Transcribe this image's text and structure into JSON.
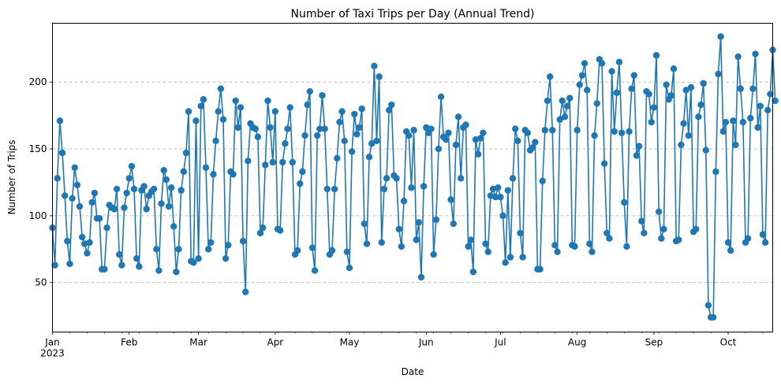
{
  "chart_data": {
    "type": "line",
    "title": "Number of Taxi Trips per Day (Annual Trend)",
    "xlabel": "Date",
    "ylabel": "Number of Trips",
    "x_start": "2023-01-01",
    "x_end": "2023-10-19",
    "xlim": [
      "2023-01-01",
      "2023-10-19"
    ],
    "ylim": [
      13,
      244
    ],
    "x_ticks": [
      {
        "date": "2023-01-01",
        "label": "Jan",
        "sublabel": "2023"
      },
      {
        "date": "2023-02-01",
        "label": "Feb",
        "sublabel": ""
      },
      {
        "date": "2023-03-01",
        "label": "Mar",
        "sublabel": ""
      },
      {
        "date": "2023-04-01",
        "label": "Apr",
        "sublabel": ""
      },
      {
        "date": "2023-05-01",
        "label": "May",
        "sublabel": ""
      },
      {
        "date": "2023-06-01",
        "label": "Jun",
        "sublabel": ""
      },
      {
        "date": "2023-07-01",
        "label": "Jul",
        "sublabel": ""
      },
      {
        "date": "2023-08-01",
        "label": "Aug",
        "sublabel": ""
      },
      {
        "date": "2023-09-01",
        "label": "Sep",
        "sublabel": ""
      },
      {
        "date": "2023-10-01",
        "label": "Oct",
        "sublabel": ""
      }
    ],
    "y_ticks": [
      50,
      100,
      150,
      200
    ],
    "grid": "y-dashed",
    "marker": "circle",
    "color": "#1f77b4",
    "series": [
      {
        "values": [
          91,
          63,
          128,
          171,
          147,
          115,
          81,
          64,
          113,
          136,
          123,
          107,
          84,
          79,
          72,
          80,
          110,
          117,
          98,
          98,
          60,
          60,
          91,
          108,
          106,
          105,
          120,
          71,
          63,
          106,
          117,
          128,
          137,
          120,
          68,
          62,
          119,
          122,
          105,
          115,
          118,
          120,
          75,
          59,
          109,
          134,
          127,
          107,
          121,
          92,
          58,
          75,
          119,
          133,
          147,
          178,
          66,
          65,
          171,
          68,
          182,
          187,
          136,
          75,
          80,
          131,
          156,
          178,
          195,
          172,
          68,
          78,
          133,
          131,
          186,
          166,
          181,
          81,
          43,
          141,
          169,
          166,
          165,
          159,
          87,
          91,
          138,
          186,
          166,
          140,
          178,
          90,
          89,
          140,
          154,
          165,
          181,
          140,
          71,
          74,
          124,
          133,
          160,
          183,
          193,
          76,
          59,
          160,
          165,
          190,
          165,
          120,
          71,
          74,
          120,
          143,
          170,
          178,
          156,
          73,
          61,
          148,
          176,
          161,
          166,
          180,
          94,
          79,
          144,
          154,
          212,
          156,
          204,
          80,
          120,
          128,
          179,
          183,
          130,
          128,
          90,
          77,
          111,
          163,
          160,
          121,
          164,
          82,
          95,
          54,
          122,
          166,
          162,
          165,
          71,
          97,
          150,
          189,
          159,
          157,
          162,
          112,
          94,
          153,
          174,
          128,
          166,
          168,
          77,
          82,
          58,
          157,
          146,
          158,
          162,
          79,
          73,
          115,
          120,
          114,
          121,
          114,
          100,
          65,
          119,
          69,
          128,
          165,
          156,
          87,
          69,
          164,
          162,
          149,
          151,
          155,
          60,
          60,
          126,
          164,
          186,
          204,
          164,
          78,
          73,
          172,
          186,
          174,
          182,
          188,
          78,
          77,
          164,
          198,
          205,
          214,
          194,
          79,
          73,
          160,
          184,
          217,
          214,
          139,
          87,
          83,
          208,
          163,
          192,
          215,
          162,
          110,
          77,
          163,
          195,
          205,
          145,
          152,
          96,
          87,
          193,
          191,
          170,
          181,
          220,
          103,
          83,
          90,
          198,
          187,
          190,
          210,
          81,
          82,
          153,
          169,
          194,
          160,
          196,
          88,
          90,
          174,
          183,
          199,
          149,
          33,
          24,
          24,
          133,
          206,
          234,
          163,
          170,
          80,
          74,
          171,
          153,
          219,
          195,
          170,
          80,
          83,
          173,
          195,
          221,
          166,
          182,
          86,
          80,
          179,
          191,
          224,
          186
        ]
      }
    ]
  }
}
